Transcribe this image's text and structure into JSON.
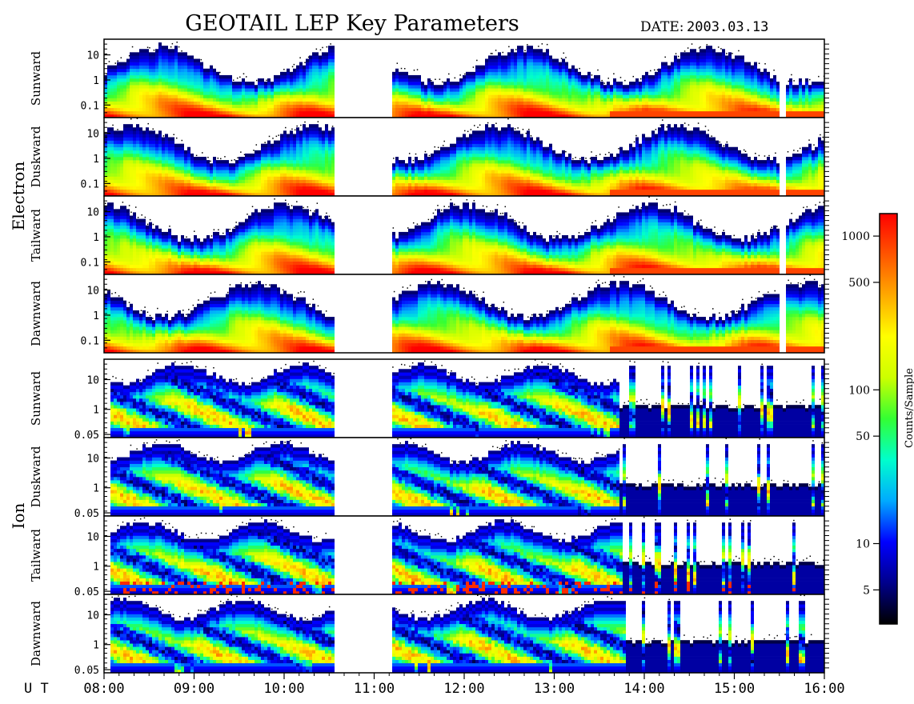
{
  "title": "GEOTAIL LEP Key Parameters",
  "date_label": "DATE:",
  "date_value": "2003.03.13",
  "chart_data": {
    "type": "heatmap",
    "x_axis": {
      "label": "U T",
      "ticks": [
        "08:00",
        "09:00",
        "10:00",
        "11:00",
        "12:00",
        "13:00",
        "14:00",
        "15:00",
        "16:00"
      ],
      "range_hours": [
        8,
        16
      ]
    },
    "groups": [
      {
        "name": "Electron",
        "panels": [
          "Sunward",
          "Duskward",
          "Tailward",
          "Dawnward"
        ],
        "y_ticks": [
          "10",
          "1",
          "0.1"
        ]
      },
      {
        "name": "Ion",
        "panels": [
          "Sunward",
          "Duskward",
          "Tailward",
          "Dawnward"
        ],
        "y_ticks": [
          "10",
          "1",
          "0.05"
        ]
      }
    ],
    "colorbar": {
      "label": "Counts/Sample",
      "ticks": [
        "1000",
        "500",
        "100",
        "50",
        "10",
        "5"
      ],
      "tick_values": [
        1000,
        500,
        100,
        50,
        10,
        5
      ],
      "range": [
        3,
        1400
      ],
      "scale": "log",
      "colors": [
        "#000000",
        "#00008b",
        "#0000ff",
        "#00aaff",
        "#00ffcc",
        "#33ff33",
        "#ccff00",
        "#ffff00",
        "#ffaa00",
        "#ff5500",
        "#ff0000"
      ]
    },
    "data_gaps_hours": [
      [
        10.55,
        11.2
      ]
    ],
    "electron_coverage_hours": [
      [
        8.0,
        10.55
      ],
      [
        11.2,
        15.5
      ],
      [
        15.55,
        16.0
      ]
    ],
    "ion_coverage_hours": [
      [
        8.05,
        10.55
      ],
      [
        11.2,
        16.0
      ]
    ]
  }
}
